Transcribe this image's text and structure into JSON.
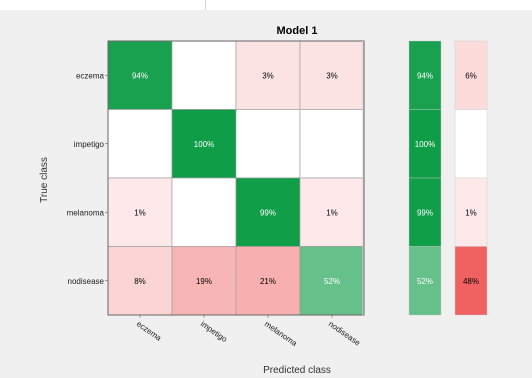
{
  "chart_data": {
    "type": "heatmap",
    "title": "Model 1",
    "xlabel": "Predicted class",
    "ylabel": "True class",
    "classes": [
      "eczema",
      "impetigo",
      "melanoma",
      "nodisease"
    ],
    "matrix": [
      [
        "94%",
        "",
        "3%",
        "3%"
      ],
      [
        "",
        "100%",
        "",
        ""
      ],
      [
        "1%",
        "",
        "99%",
        "1%"
      ],
      [
        "8%",
        "19%",
        "21%",
        "52%"
      ]
    ],
    "matrix_values": [
      [
        94,
        0,
        3,
        3
      ],
      [
        0,
        100,
        0,
        0
      ],
      [
        1,
        0,
        99,
        1
      ],
      [
        8,
        19,
        21,
        52
      ]
    ],
    "row_summary": [
      [
        "94%",
        "6%"
      ],
      [
        "100%",
        ""
      ],
      [
        "99%",
        "1%"
      ],
      [
        "52%",
        "48%"
      ]
    ],
    "row_summary_values": [
      [
        94,
        6
      ],
      [
        100,
        0
      ],
      [
        99,
        1
      ],
      [
        52,
        48
      ]
    ],
    "colors": {
      "correct": "#0f9d48",
      "incorrect": "#f06060",
      "background": "#f0f0f0"
    }
  }
}
